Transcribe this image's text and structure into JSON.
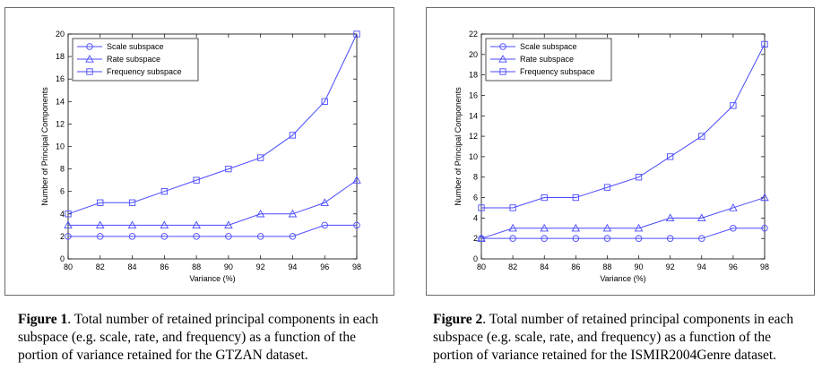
{
  "chart_data": [
    {
      "type": "line",
      "title": "",
      "xlabel": "Variance (%)",
      "ylabel": "Number of Principal Components",
      "x": [
        80,
        82,
        84,
        86,
        88,
        90,
        92,
        94,
        96,
        98
      ],
      "xticks": [
        "80",
        "82",
        "84",
        "86",
        "88",
        "90",
        "92",
        "94",
        "96",
        "98"
      ],
      "xlim": [
        80,
        98
      ],
      "ylim": [
        0,
        20
      ],
      "yticks": [
        "0",
        "2",
        "4",
        "6",
        "8",
        "10",
        "12",
        "14",
        "16",
        "18",
        "20"
      ],
      "grid": false,
      "legend_position": "top-left",
      "color": "#4a4aff",
      "series": [
        {
          "name": "Scale subspace",
          "marker": "circle",
          "values": [
            2,
            2,
            2,
            2,
            2,
            2,
            2,
            2,
            3,
            3
          ]
        },
        {
          "name": "Rate subspace",
          "marker": "triangle",
          "values": [
            3,
            3,
            3,
            3,
            3,
            3,
            4,
            4,
            5,
            7
          ]
        },
        {
          "name": "Frequency subspace",
          "marker": "square",
          "values": [
            4,
            5,
            5,
            6,
            7,
            8,
            9,
            11,
            14,
            20
          ]
        }
      ]
    },
    {
      "type": "line",
      "title": "",
      "xlabel": "Variance (%)",
      "ylabel": "Number of Principal Components",
      "x": [
        80,
        82,
        84,
        86,
        88,
        90,
        92,
        94,
        96,
        98
      ],
      "xticks": [
        "80",
        "82",
        "84",
        "86",
        "88",
        "90",
        "92",
        "94",
        "96",
        "98"
      ],
      "xlim": [
        80,
        98
      ],
      "ylim": [
        0,
        22
      ],
      "yticks": [
        "0",
        "2",
        "4",
        "6",
        "8",
        "10",
        "12",
        "14",
        "16",
        "18",
        "20",
        "22"
      ],
      "grid": false,
      "legend_position": "top-left",
      "color": "#4a4aff",
      "series": [
        {
          "name": "Scale subspace",
          "marker": "circle",
          "values": [
            2,
            2,
            2,
            2,
            2,
            2,
            2,
            2,
            3,
            3
          ]
        },
        {
          "name": "Rate subspace",
          "marker": "triangle",
          "values": [
            2,
            3,
            3,
            3,
            3,
            3,
            4,
            4,
            5,
            6
          ]
        },
        {
          "name": "Frequency subspace",
          "marker": "square",
          "values": [
            5,
            5,
            6,
            6,
            7,
            8,
            10,
            12,
            15,
            21
          ]
        }
      ]
    }
  ],
  "captions": [
    {
      "label": "Figure 1",
      "text": ". Total number of retained principal components in each subspace (e.g. scale, rate, and frequency) as a function of the portion of variance retained for the GTZAN dataset."
    },
    {
      "label": "Figure 2",
      "text": ". Total number of retained principal components in each subspace (e.g. scale, rate, and frequency) as a function of the portion of variance retained for the ISMIR2004Genre dataset."
    }
  ]
}
